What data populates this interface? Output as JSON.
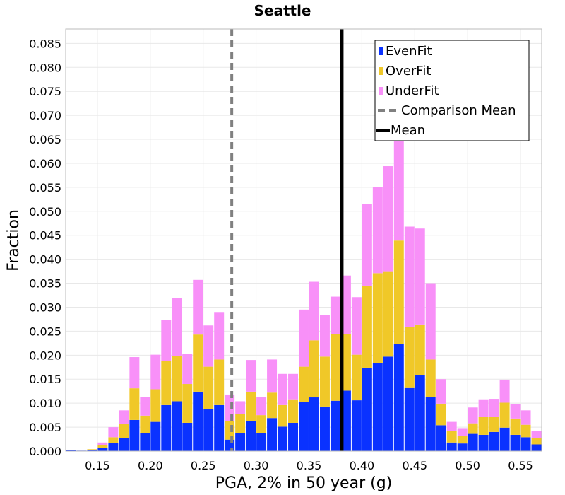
{
  "chart_data": {
    "type": "bar",
    "stacked": true,
    "title": "Seattle",
    "xlabel": "PGA, 2% in 50 year (g)",
    "ylabel": "Fraction",
    "xlim": [
      0.12,
      0.57
    ],
    "ylim": [
      0.0,
      0.088
    ],
    "bin_width": 0.01,
    "x_ticks": [
      "0.15",
      "0.20",
      "0.25",
      "0.30",
      "0.35",
      "0.40",
      "0.45",
      "0.50",
      "0.55"
    ],
    "x_tick_values": [
      0.15,
      0.2,
      0.25,
      0.3,
      0.35,
      0.4,
      0.45,
      0.5,
      0.55
    ],
    "y_ticks": [
      "0.000",
      "0.005",
      "0.010",
      "0.015",
      "0.020",
      "0.025",
      "0.030",
      "0.035",
      "0.040",
      "0.045",
      "0.050",
      "0.055",
      "0.060",
      "0.065",
      "0.070",
      "0.075",
      "0.080",
      "0.085"
    ],
    "y_tick_values": [
      0.0,
      0.005,
      0.01,
      0.015,
      0.02,
      0.025,
      0.03,
      0.035,
      0.04,
      0.045,
      0.05,
      0.055,
      0.06,
      0.065,
      0.07,
      0.075,
      0.08,
      0.085
    ],
    "grid": true,
    "legend_position": "top-right",
    "bin_centers": [
      0.125,
      0.135,
      0.145,
      0.155,
      0.165,
      0.175,
      0.185,
      0.195,
      0.205,
      0.215,
      0.225,
      0.235,
      0.245,
      0.255,
      0.265,
      0.275,
      0.285,
      0.295,
      0.305,
      0.315,
      0.325,
      0.335,
      0.345,
      0.355,
      0.365,
      0.375,
      0.385,
      0.395,
      0.405,
      0.415,
      0.425,
      0.435,
      0.445,
      0.455,
      0.465,
      0.475,
      0.485,
      0.495,
      0.505,
      0.515,
      0.525,
      0.535,
      0.545,
      0.555,
      0.565
    ],
    "series": [
      {
        "name": "EvenFit",
        "color": "#0a32ff",
        "values": [
          0.0002,
          0.0001,
          0.0003,
          0.0007,
          0.0017,
          0.0028,
          0.0065,
          0.0037,
          0.0061,
          0.0096,
          0.0104,
          0.0059,
          0.0124,
          0.0088,
          0.0096,
          0.0024,
          0.0038,
          0.0063,
          0.0038,
          0.0069,
          0.0051,
          0.0059,
          0.0102,
          0.0112,
          0.0093,
          0.0105,
          0.0126,
          0.0106,
          0.0174,
          0.0184,
          0.0197,
          0.0223,
          0.0133,
          0.0159,
          0.0113,
          0.0054,
          0.0018,
          0.0016,
          0.0036,
          0.0034,
          0.004,
          0.0049,
          0.0034,
          0.0029,
          0.0014
        ]
      },
      {
        "name": "OverFit",
        "color": "#f0c828",
        "values": [
          0.0,
          0.0,
          0.0001,
          0.0006,
          0.0012,
          0.0028,
          0.0066,
          0.0037,
          0.0068,
          0.0092,
          0.0094,
          0.0081,
          0.0119,
          0.0088,
          0.0095,
          0.0039,
          0.0039,
          0.0061,
          0.0037,
          0.0053,
          0.0045,
          0.0049,
          0.0074,
          0.0119,
          0.0104,
          0.0139,
          0.0118,
          0.0095,
          0.0171,
          0.0187,
          0.0178,
          0.0216,
          0.0126,
          0.0105,
          0.0078,
          0.0045,
          0.0024,
          0.0016,
          0.0022,
          0.0037,
          0.0031,
          0.0052,
          0.0034,
          0.0026,
          0.0013
        ]
      },
      {
        "name": "UnderFit",
        "color": "#f890f8",
        "values": [
          0.0,
          0.0,
          0.0,
          0.0005,
          0.0021,
          0.0029,
          0.0065,
          0.0039,
          0.0072,
          0.0086,
          0.0121,
          0.0062,
          0.0114,
          0.0086,
          0.0099,
          0.0055,
          0.0027,
          0.0066,
          0.0038,
          0.0069,
          0.0065,
          0.0053,
          0.0119,
          0.0122,
          0.0087,
          0.0078,
          0.0122,
          0.012,
          0.017,
          0.018,
          0.0219,
          0.0223,
          0.0209,
          0.02,
          0.0159,
          0.0051,
          0.0019,
          0.0016,
          0.0033,
          0.0037,
          0.0038,
          0.0048,
          0.003,
          0.003,
          0.0015
        ]
      }
    ],
    "reference_lines": [
      {
        "name": "Comparison Mean",
        "x": 0.277,
        "color": "#808080",
        "style": "dashed"
      },
      {
        "name": "Mean",
        "x": 0.381,
        "color": "#000000",
        "style": "solid"
      }
    ],
    "legend": [
      {
        "label": "EvenFit",
        "kind": "patch",
        "color": "#0a32ff"
      },
      {
        "label": "OverFit",
        "kind": "patch",
        "color": "#f0c828"
      },
      {
        "label": "UnderFit",
        "kind": "patch",
        "color": "#f890f8"
      },
      {
        "label": "Comparison Mean",
        "kind": "dashed-line",
        "color": "#808080"
      },
      {
        "label": "Mean",
        "kind": "solid-line",
        "color": "#000000"
      }
    ]
  }
}
